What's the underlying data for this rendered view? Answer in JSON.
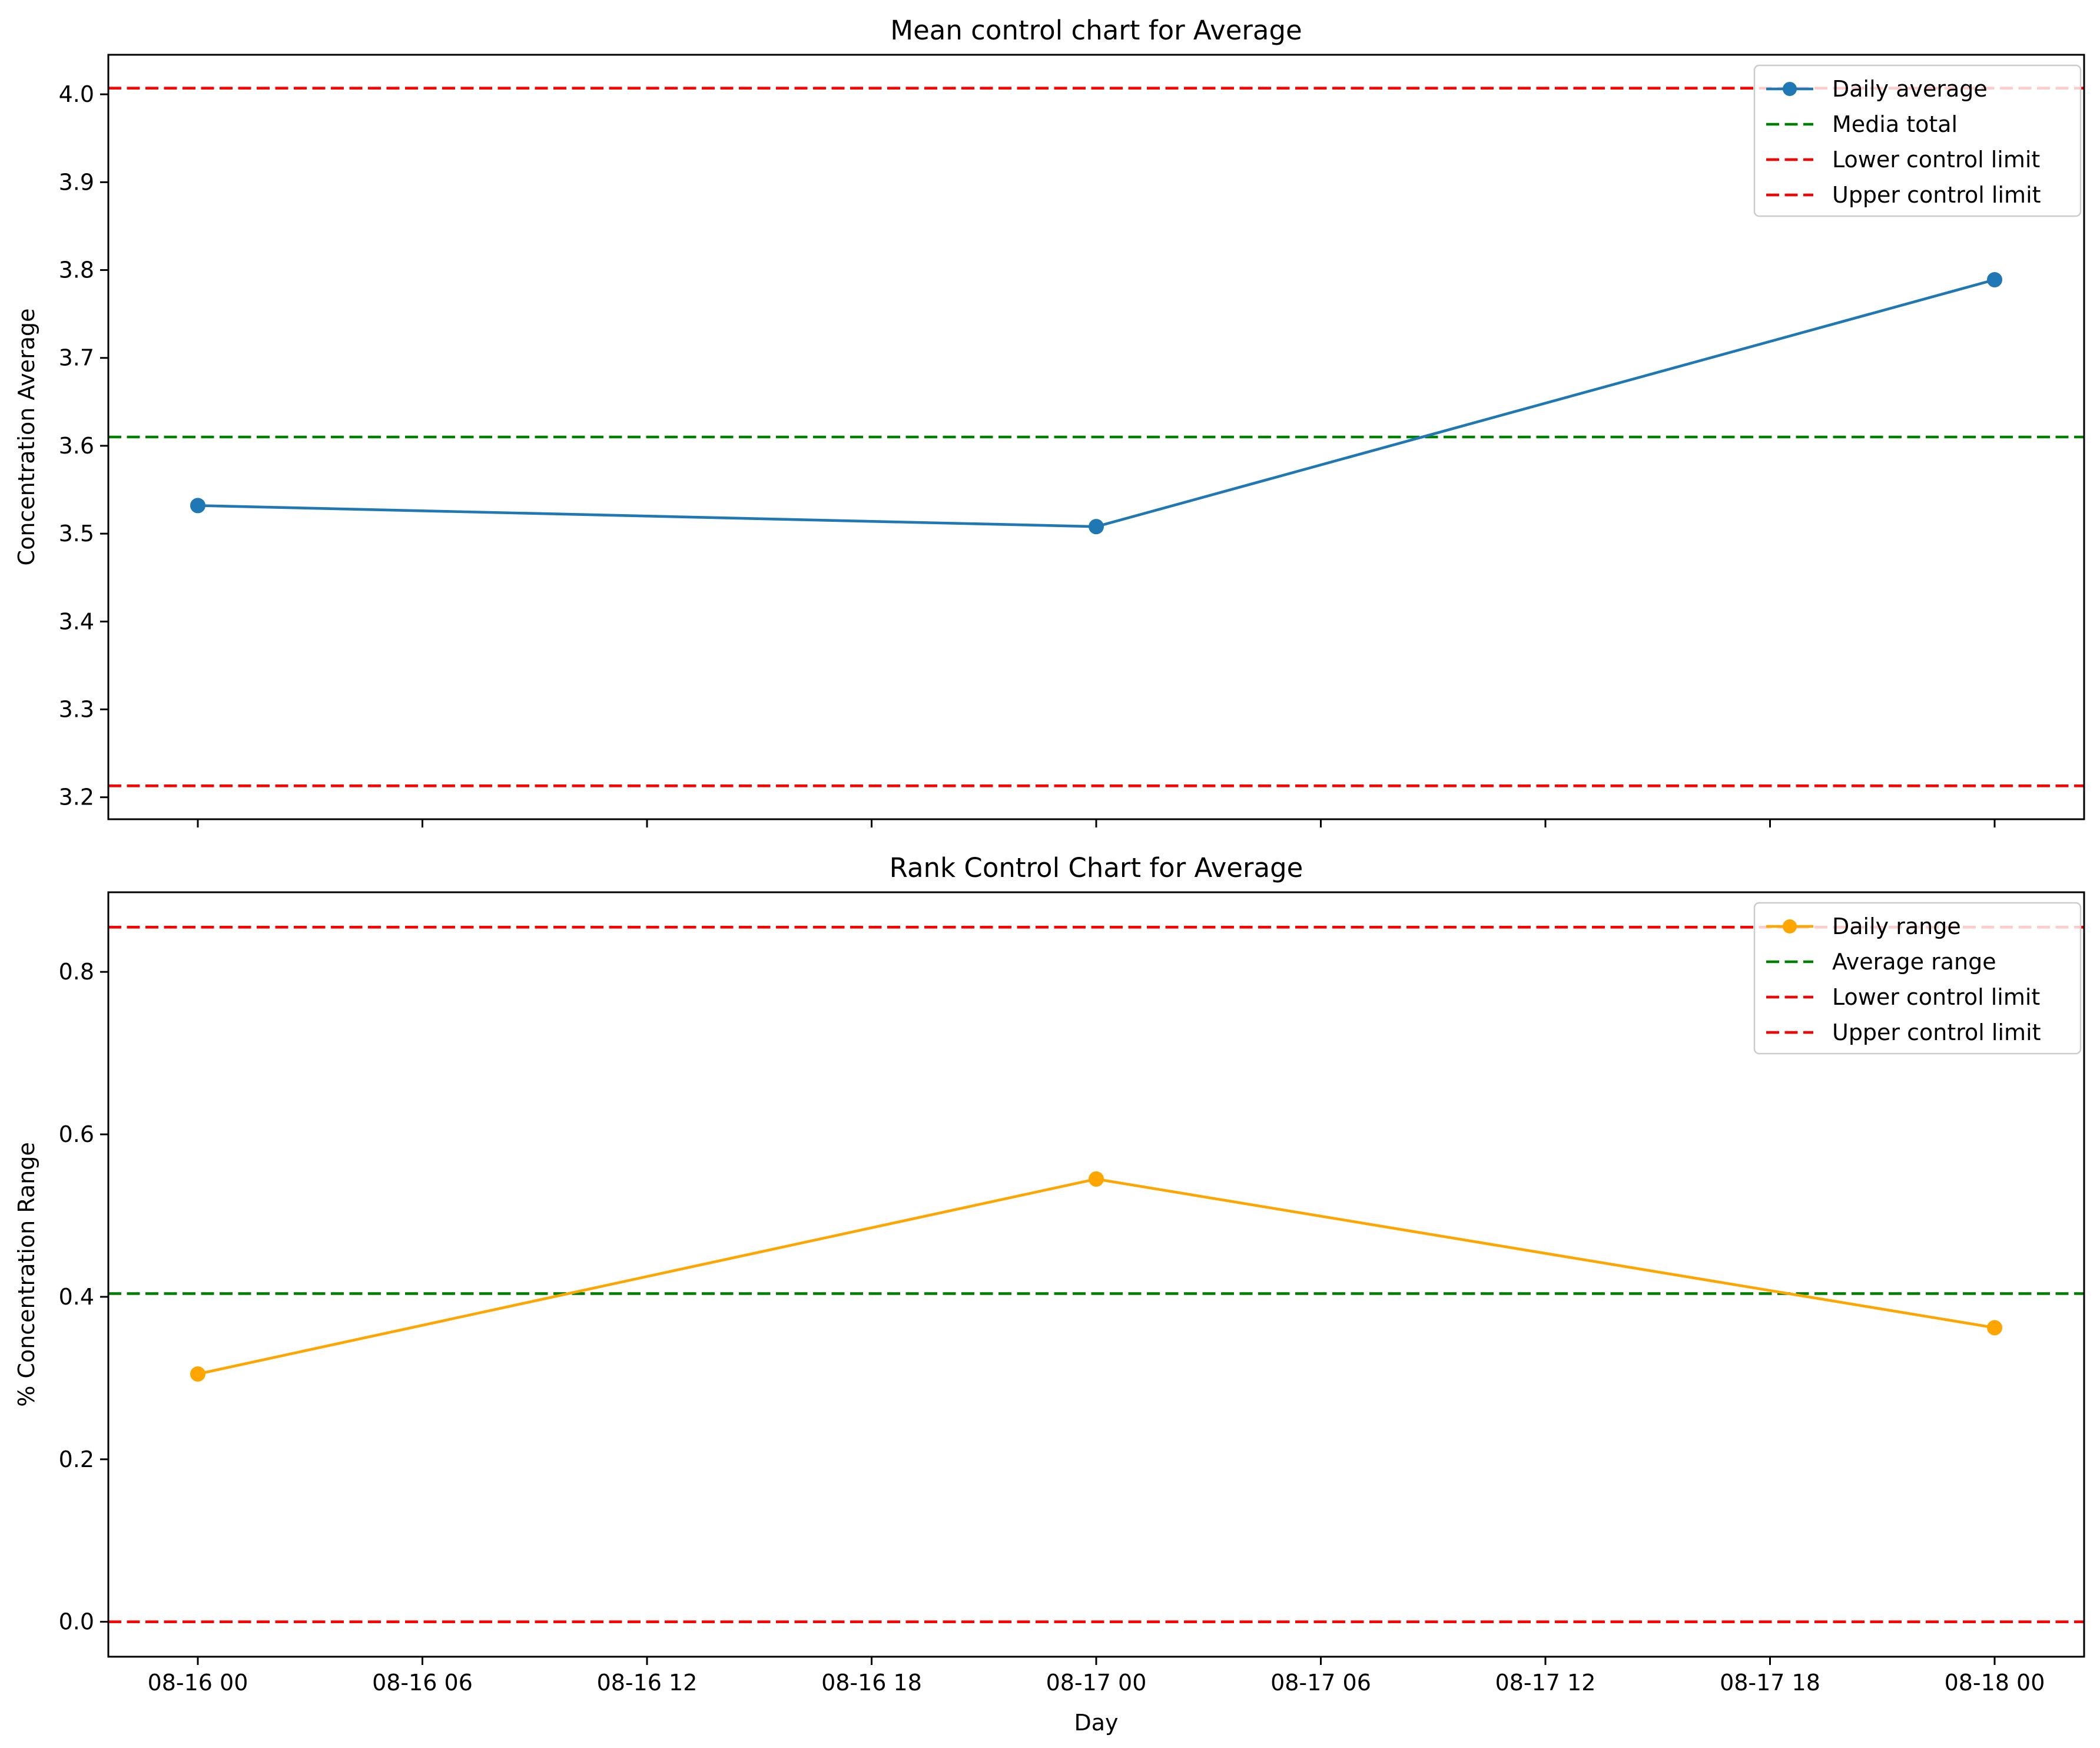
{
  "chart_data": [
    {
      "type": "line",
      "title": "Mean control chart for Average",
      "xlabel": "",
      "ylabel": "Concentration Average",
      "x": [
        "08-16 00",
        "08-17 00",
        "08-18 00"
      ],
      "x_ticks": [
        "08-16 00",
        "08-16 06",
        "08-16 12",
        "08-16 18",
        "08-17 00",
        "08-17 06",
        "08-17 12",
        "08-17 18",
        "08-18 00"
      ],
      "x_tick_labels_shown": false,
      "ylim": [
        3.175,
        4.045
      ],
      "y_ticks": [
        "3.2",
        "3.3",
        "3.4",
        "3.5",
        "3.6",
        "3.7",
        "3.8",
        "3.9",
        "4.0"
      ],
      "series": [
        {
          "name": "Daily average",
          "values": [
            3.532,
            3.508,
            3.789
          ],
          "color": "#1f77b4",
          "style": "solid",
          "marker": "circle"
        }
      ],
      "reference_lines": [
        {
          "name": "Media total",
          "value": 3.61,
          "color": "#008000",
          "style": "dashed"
        },
        {
          "name": "Lower control limit",
          "value": 3.213,
          "color": "#ff0000",
          "style": "dashed"
        },
        {
          "name": "Upper control limit",
          "value": 4.007,
          "color": "#ff0000",
          "style": "dashed"
        }
      ],
      "legend": "top-right",
      "grid": false
    },
    {
      "type": "line",
      "title": "Rank Control Chart for Average",
      "xlabel": "Day",
      "ylabel": "% Concentration Range",
      "x": [
        "08-16 00",
        "08-17 00",
        "08-18 00"
      ],
      "x_ticks": [
        "08-16 00",
        "08-16 06",
        "08-16 12",
        "08-16 18",
        "08-17 00",
        "08-17 06",
        "08-17 12",
        "08-17 18",
        "08-18 00"
      ],
      "x_tick_labels_shown": true,
      "ylim": [
        -0.043,
        0.898
      ],
      "y_ticks": [
        "0.0",
        "0.2",
        "0.4",
        "0.6",
        "0.8"
      ],
      "series": [
        {
          "name": "Daily range",
          "values": [
            0.305,
            0.545,
            0.362
          ],
          "color": "#ffa500",
          "style": "solid",
          "marker": "circle"
        }
      ],
      "reference_lines": [
        {
          "name": "Average range",
          "value": 0.404,
          "color": "#008000",
          "style": "dashed"
        },
        {
          "name": "Lower control limit",
          "value": 0.0,
          "color": "#ff0000",
          "style": "dashed"
        },
        {
          "name": "Upper control limit",
          "value": 0.855,
          "color": "#ff0000",
          "style": "dashed"
        }
      ],
      "legend": "top-right",
      "grid": false
    }
  ]
}
